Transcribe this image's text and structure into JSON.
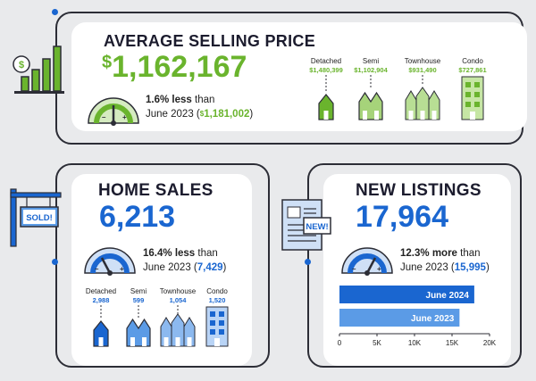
{
  "average_selling_price": {
    "title": "AVERAGE SELLING PRICE",
    "currency_symbol": "$",
    "value": "1,162,167",
    "change_pct": "1.6%",
    "direction": "less",
    "than": "than",
    "prior_period": "June 2023",
    "prior_currency": "$",
    "prior_value": "1,181,002",
    "accent": "#6ab42d",
    "by_type": [
      {
        "label": "Detached",
        "value": "$1,480,399"
      },
      {
        "label": "Semi",
        "value": "$1,102,904"
      },
      {
        "label": "Townhouse",
        "value": "$931,490"
      },
      {
        "label": "Condo",
        "value": "$727,861"
      }
    ]
  },
  "home_sales": {
    "title": "HOME SALES",
    "value": "6,213",
    "change_pct": "16.4%",
    "direction": "less",
    "than": "than",
    "prior_period": "June 2023",
    "prior_value": "7,429",
    "sign_text": "SOLD!",
    "accent": "#1a66d0",
    "by_type": [
      {
        "label": "Detached",
        "value": "2,988"
      },
      {
        "label": "Semi",
        "value": "599"
      },
      {
        "label": "Townhouse",
        "value": "1,054"
      },
      {
        "label": "Condo",
        "value": "1,520"
      }
    ]
  },
  "new_listings": {
    "title": "NEW LISTINGS",
    "value": "17,964",
    "change_pct": "12.3%",
    "direction": "more",
    "than": "than",
    "prior_period": "June 2023",
    "prior_value": "15,995",
    "badge_text": "NEW!",
    "accent": "#1a66d0"
  },
  "gauge_marks": {
    "minus": "–",
    "plus": "+"
  },
  "chart_data": {
    "type": "bar",
    "orientation": "horizontal",
    "categories": [
      "June 2024",
      "June 2023"
    ],
    "values": [
      17964,
      15995
    ],
    "xlim": [
      0,
      20000
    ],
    "xticks": [
      "0",
      "5K",
      "10K",
      "15K",
      "20K"
    ],
    "colors": [
      "#1a66d0",
      "#5b9be6"
    ],
    "title": "",
    "xlabel": "",
    "ylabel": ""
  }
}
